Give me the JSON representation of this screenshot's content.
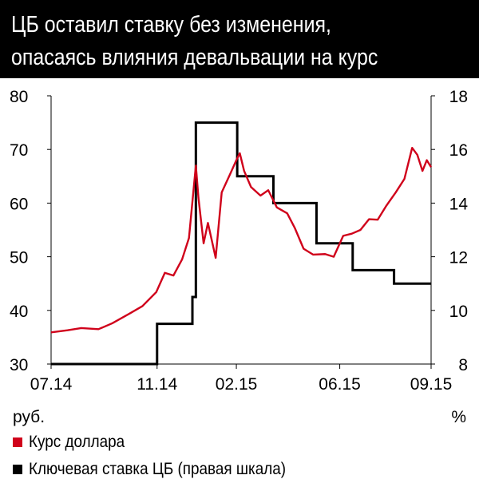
{
  "title_line1": "ЦБ оставил ставку без изменения,",
  "title_line2": "опасаясь влияния девальвации на курс",
  "colors": {
    "header_bg": "#000000",
    "usd": "#d0021b",
    "rate": "#000000"
  },
  "chart_data": {
    "type": "line",
    "x_ticks": [
      "07.14",
      "11.14",
      "02.15",
      "06.15",
      "09.15"
    ],
    "left_axis": {
      "unit": "руб.",
      "ylim": [
        30,
        80
      ],
      "ticks": [
        80,
        70,
        60,
        50,
        40,
        30
      ]
    },
    "right_axis": {
      "unit": "%",
      "ylim": [
        8,
        18
      ],
      "ticks": [
        18,
        16,
        14,
        12,
        10,
        8
      ]
    },
    "grid": false,
    "legend_position": "bottom-left",
    "series": [
      {
        "name": "Курс доллара",
        "axis": "left",
        "color": "#d0021b",
        "points": [
          [
            "2014-07-01",
            35.9
          ],
          [
            "2014-07-20",
            36.3
          ],
          [
            "2014-08-05",
            36.7
          ],
          [
            "2014-08-25",
            36.5
          ],
          [
            "2014-09-10",
            37.6
          ],
          [
            "2014-09-30",
            39.4
          ],
          [
            "2014-10-15",
            40.8
          ],
          [
            "2014-10-31",
            43.4
          ],
          [
            "2014-11-10",
            47.0
          ],
          [
            "2014-11-20",
            46.5
          ],
          [
            "2014-11-30",
            49.5
          ],
          [
            "2014-12-08",
            53.5
          ],
          [
            "2014-12-16",
            67.0
          ],
          [
            "2014-12-19",
            61.0
          ],
          [
            "2014-12-25",
            52.5
          ],
          [
            "2014-12-30",
            56.3
          ],
          [
            "2015-01-08",
            49.8
          ],
          [
            "2015-01-15",
            62.0
          ],
          [
            "2015-01-25",
            65.5
          ],
          [
            "2015-02-01",
            68.0
          ],
          [
            "2015-02-05",
            69.3
          ],
          [
            "2015-02-10",
            66.0
          ],
          [
            "2015-02-18",
            63.0
          ],
          [
            "2015-03-01",
            61.4
          ],
          [
            "2015-03-10",
            62.4
          ],
          [
            "2015-03-20",
            59.2
          ],
          [
            "2015-04-01",
            58.1
          ],
          [
            "2015-04-10",
            55.3
          ],
          [
            "2015-04-20",
            51.5
          ],
          [
            "2015-05-01",
            50.4
          ],
          [
            "2015-05-15",
            50.5
          ],
          [
            "2015-05-25",
            50.0
          ],
          [
            "2015-06-05",
            53.9
          ],
          [
            "2015-06-15",
            54.3
          ],
          [
            "2015-06-25",
            55.0
          ],
          [
            "2015-07-05",
            57.0
          ],
          [
            "2015-07-15",
            56.9
          ],
          [
            "2015-07-25",
            59.5
          ],
          [
            "2015-08-05",
            62.0
          ],
          [
            "2015-08-15",
            64.5
          ],
          [
            "2015-08-24",
            70.3
          ],
          [
            "2015-08-30",
            69.0
          ],
          [
            "2015-09-05",
            66.0
          ],
          [
            "2015-09-10",
            68.0
          ],
          [
            "2015-09-15",
            66.7
          ]
        ]
      },
      {
        "name": "Ключевая ставка ЦБ (правая шкала)",
        "axis": "right",
        "color": "#000000",
        "steps": [
          [
            "2014-07-01",
            8.0
          ],
          [
            "2014-11-01",
            9.5
          ],
          [
            "2014-12-12",
            10.5
          ],
          [
            "2014-12-16",
            17.0
          ],
          [
            "2015-02-02",
            15.0
          ],
          [
            "2015-03-16",
            14.0
          ],
          [
            "2015-05-05",
            12.5
          ],
          [
            "2015-06-16",
            11.5
          ],
          [
            "2015-08-03",
            11.0
          ],
          [
            "2015-09-15",
            11.0
          ]
        ]
      }
    ]
  },
  "legend": [
    {
      "label": "Курс доллара",
      "color": "#d0021b"
    },
    {
      "label": "Ключевая ставка ЦБ (правая шкала)",
      "color": "#000000"
    }
  ]
}
